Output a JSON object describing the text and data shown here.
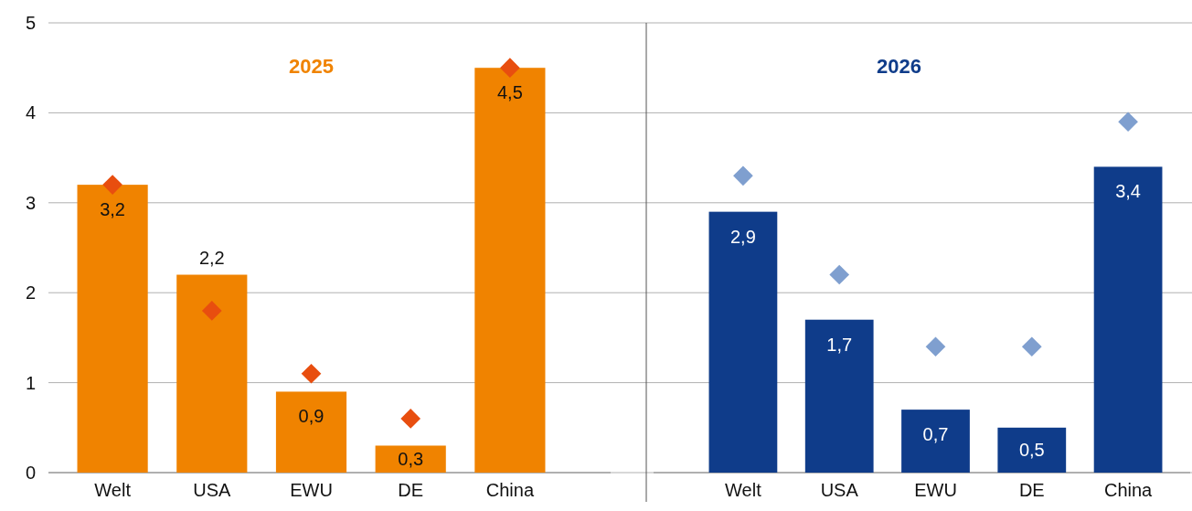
{
  "chart_data": [
    {
      "type": "bar",
      "title": "2025",
      "categories": [
        "Welt",
        "USA",
        "EWU",
        "DE",
        "China"
      ],
      "ylim": [
        0,
        5
      ],
      "yticks": [
        0,
        1,
        2,
        3,
        4,
        5
      ],
      "grid": "y",
      "marker": "diamond",
      "series": [
        {
          "color": "#f08300",
          "values": [
            3.2,
            2.2,
            0.9,
            0.3,
            4.5
          ],
          "value_labels": [
            "3,2",
            "2,2",
            "0,9",
            "0,3",
            "4,5"
          ]
        },
        {
          "type": "scatter",
          "color": "#e84e0f",
          "values": [
            3.2,
            1.8,
            1.1,
            0.6,
            4.5
          ]
        }
      ]
    },
    {
      "type": "bar",
      "title": "2026",
      "categories": [
        "Welt",
        "USA",
        "EWU",
        "DE",
        "China"
      ],
      "ylim": [
        0,
        5
      ],
      "yticks": [
        0,
        1,
        2,
        3,
        4,
        5
      ],
      "grid": "y",
      "tick_labels": "x",
      "marker": "diamond",
      "series": [
        {
          "color": "#0f3c8a",
          "values": [
            2.9,
            1.7,
            0.7,
            0.5,
            3.4
          ],
          "value_labels": [
            "2,9",
            "1,7",
            "0,7",
            "0,5",
            "3,4"
          ]
        },
        {
          "type": "scatter",
          "color": "#7f9fcf",
          "values": [
            3.3,
            2.2,
            1.4,
            1.4,
            3.9
          ]
        }
      ]
    }
  ]
}
